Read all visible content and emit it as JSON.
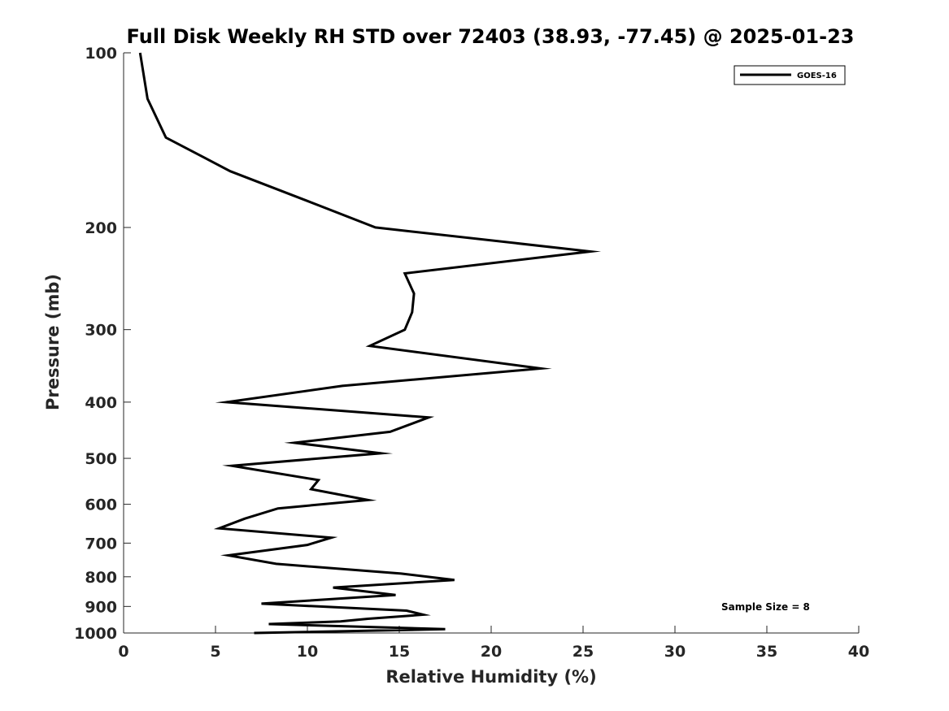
{
  "chart_data": {
    "type": "line",
    "title": "Full Disk Weekly RH STD over 72403 (38.93, -77.45) @ 2025-01-23",
    "xlabel": "Relative Humidity (%)",
    "ylabel": "Pressure (mb)",
    "xlim": [
      0,
      40
    ],
    "ylim": [
      100,
      1000
    ],
    "y_scale": "log",
    "y_direction": "reversed",
    "x_ticks": [
      0,
      5,
      10,
      15,
      20,
      25,
      30,
      35,
      40
    ],
    "y_ticks": [
      100,
      200,
      300,
      400,
      500,
      600,
      700,
      800,
      900,
      1000
    ],
    "grid": false,
    "legend_position": "top-right",
    "series": [
      {
        "name": "GOES-16",
        "color": "#000000",
        "points": [
          {
            "x": 0.9,
            "y": 100
          },
          {
            "x": 1.3,
            "y": 120
          },
          {
            "x": 2.3,
            "y": 140
          },
          {
            "x": 5.8,
            "y": 160
          },
          {
            "x": 10.0,
            "y": 180
          },
          {
            "x": 13.7,
            "y": 200
          },
          {
            "x": 25.4,
            "y": 220
          },
          {
            "x": 15.3,
            "y": 240
          },
          {
            "x": 15.8,
            "y": 260
          },
          {
            "x": 15.7,
            "y": 280
          },
          {
            "x": 15.3,
            "y": 300
          },
          {
            "x": 13.4,
            "y": 320
          },
          {
            "x": 22.7,
            "y": 350
          },
          {
            "x": 11.9,
            "y": 375
          },
          {
            "x": 5.6,
            "y": 400
          },
          {
            "x": 16.6,
            "y": 425
          },
          {
            "x": 14.5,
            "y": 450
          },
          {
            "x": 9.3,
            "y": 470
          },
          {
            "x": 14.0,
            "y": 490
          },
          {
            "x": 5.9,
            "y": 515
          },
          {
            "x": 10.6,
            "y": 545
          },
          {
            "x": 10.2,
            "y": 565
          },
          {
            "x": 13.3,
            "y": 590
          },
          {
            "x": 8.4,
            "y": 610
          },
          {
            "x": 6.6,
            "y": 635
          },
          {
            "x": 5.2,
            "y": 660
          },
          {
            "x": 11.3,
            "y": 685
          },
          {
            "x": 10.0,
            "y": 705
          },
          {
            "x": 5.7,
            "y": 735
          },
          {
            "x": 8.3,
            "y": 760
          },
          {
            "x": 15.1,
            "y": 790
          },
          {
            "x": 18.0,
            "y": 810
          },
          {
            "x": 11.4,
            "y": 835
          },
          {
            "x": 14.8,
            "y": 860
          },
          {
            "x": 7.5,
            "y": 890
          },
          {
            "x": 15.4,
            "y": 915
          },
          {
            "x": 16.3,
            "y": 930
          },
          {
            "x": 13.3,
            "y": 945
          },
          {
            "x": 11.8,
            "y": 955
          },
          {
            "x": 7.9,
            "y": 965
          },
          {
            "x": 17.5,
            "y": 985
          },
          {
            "x": 7.1,
            "y": 1000
          }
        ]
      }
    ],
    "annotations": [
      "Sample Size = 8"
    ]
  }
}
